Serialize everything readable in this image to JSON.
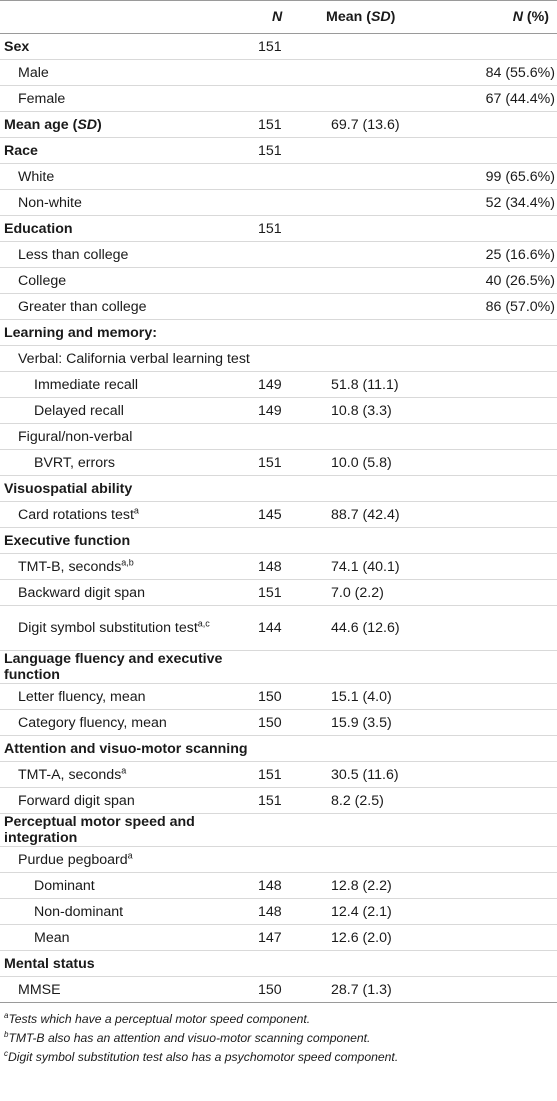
{
  "header": {
    "n": "N",
    "mean_prefix": "Mean (",
    "mean_sd": "SD",
    "mean_suffix": ")",
    "pct_n": "N",
    "pct_suffix": " (%)"
  },
  "rows": [
    {
      "label": "Sex",
      "style": "section",
      "n": "151",
      "mean": "",
      "pct": ""
    },
    {
      "label": "Male",
      "style": "l1",
      "n": "",
      "mean": "",
      "pct": "84 (55.6%)"
    },
    {
      "label": "Female",
      "style": "l1",
      "n": "",
      "mean": "",
      "pct": "67 (44.4%)"
    },
    {
      "label": "Mean age (",
      "label_it": "SD",
      "label_end": ")",
      "style": "section",
      "n": "151",
      "mean": "69.7 (13.6)",
      "pct": ""
    },
    {
      "label": "Race",
      "style": "section",
      "n": "151",
      "mean": "",
      "pct": ""
    },
    {
      "label": "White",
      "style": "l1",
      "n": "",
      "mean": "",
      "pct": "99 (65.6%)"
    },
    {
      "label": "Non-white",
      "style": "l1",
      "n": "",
      "mean": "",
      "pct": "52 (34.4%)"
    },
    {
      "label": "Education",
      "style": "section",
      "n": "151",
      "mean": "",
      "pct": ""
    },
    {
      "label": "Less than college",
      "style": "l1",
      "n": "",
      "mean": "",
      "pct": "25 (16.6%)"
    },
    {
      "label": "College",
      "style": "l1",
      "n": "",
      "mean": "",
      "pct": "40 (26.5%)"
    },
    {
      "label": "Greater than college",
      "style": "l1",
      "n": "",
      "mean": "",
      "pct": "86 (57.0%)"
    },
    {
      "label": "Learning and memory:",
      "style": "section",
      "n": "",
      "mean": "",
      "pct": ""
    },
    {
      "label": "Verbal: California verbal learning test",
      "style": "l1",
      "n": "",
      "mean": "",
      "pct": ""
    },
    {
      "label": "Immediate recall",
      "style": "l2",
      "n": "149",
      "mean": "51.8 (11.1)",
      "pct": ""
    },
    {
      "label": "Delayed recall",
      "style": "l2",
      "n": "149",
      "mean": "10.8 (3.3)",
      "pct": ""
    },
    {
      "label": "Figural/non-verbal",
      "style": "l1",
      "n": "",
      "mean": "",
      "pct": ""
    },
    {
      "label": "BVRT, errors",
      "style": "l2",
      "n": "151",
      "mean": "10.0 (5.8)",
      "pct": ""
    },
    {
      "label": "Visuospatial ability",
      "style": "section",
      "n": "",
      "mean": "",
      "pct": ""
    },
    {
      "label": "Card rotations test",
      "sup": "a",
      "style": "l1",
      "n": "145",
      "mean": "88.7 (42.4)",
      "pct": ""
    },
    {
      "label": "Executive function",
      "style": "section",
      "n": "",
      "mean": "",
      "pct": ""
    },
    {
      "label": "TMT-B, seconds",
      "sup": "a,b",
      "style": "l1",
      "n": "148",
      "mean": "74.1 (40.1)",
      "pct": ""
    },
    {
      "label": "Backward digit span",
      "style": "l1",
      "n": "151",
      "mean": "7.0 (2.2)",
      "pct": ""
    },
    {
      "label": "Digit symbol substitution test",
      "sup": "a,c",
      "style": "l1",
      "tall": true,
      "n": "144",
      "mean": "44.6 (12.6)",
      "pct": ""
    },
    {
      "label": "Language fluency and executive function",
      "style": "section",
      "n": "",
      "mean": "",
      "pct": ""
    },
    {
      "label": "Letter fluency, mean",
      "style": "l1",
      "n": "150",
      "mean": "15.1 (4.0)",
      "pct": ""
    },
    {
      "label": "Category fluency, mean",
      "style": "l1",
      "n": "150",
      "mean": "15.9 (3.5)",
      "pct": ""
    },
    {
      "label": "Attention and visuo-motor scanning",
      "style": "section",
      "n": "",
      "mean": "",
      "pct": ""
    },
    {
      "label": "TMT-A, seconds",
      "sup": "a",
      "style": "l1",
      "n": "151",
      "mean": "30.5 (11.6)",
      "pct": ""
    },
    {
      "label": "Forward digit span",
      "style": "l1",
      "n": "151",
      "mean": "8.2 (2.5)",
      "pct": ""
    },
    {
      "label": "Perceptual motor speed and integration",
      "style": "section",
      "n": "",
      "mean": "",
      "pct": ""
    },
    {
      "label": "Purdue pegboard",
      "sup": "a",
      "style": "l1",
      "n": "",
      "mean": "",
      "pct": ""
    },
    {
      "label": "Dominant",
      "style": "l2",
      "n": "148",
      "mean": "12.8 (2.2)",
      "pct": ""
    },
    {
      "label": "Non-dominant",
      "style": "l2",
      "n": "148",
      "mean": "12.4 (2.1)",
      "pct": ""
    },
    {
      "label": "Mean",
      "style": "l2",
      "n": "147",
      "mean": "12.6 (2.0)",
      "pct": ""
    },
    {
      "label": "Mental status",
      "style": "section",
      "n": "",
      "mean": "",
      "pct": ""
    },
    {
      "label": "MMSE",
      "style": "l1",
      "n": "150",
      "mean": "28.7 (1.3)",
      "pct": ""
    }
  ],
  "footnotes": [
    {
      "mark": "a",
      "text": "Tests which have a perceptual motor speed component."
    },
    {
      "mark": "b",
      "text": "TMT-B also has an attention and visuo-motor scanning component."
    },
    {
      "mark": "c",
      "text": "Digit symbol substitution test also has a psychomotor speed component."
    }
  ]
}
